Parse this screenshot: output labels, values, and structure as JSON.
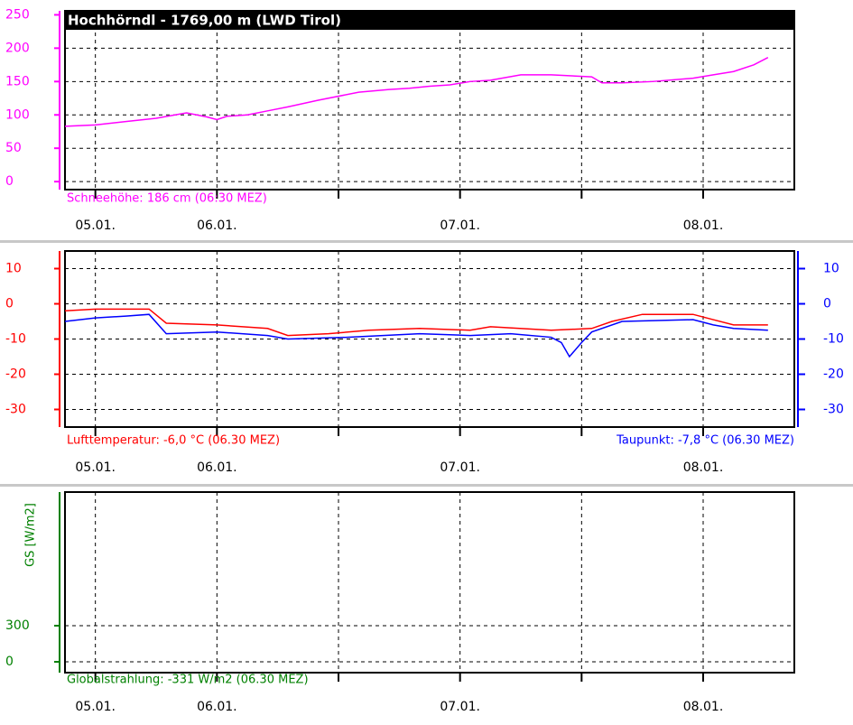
{
  "chart_data": [
    {
      "type": "line",
      "title": "Hochhörndl - 1769,00 m (LWD Tirol)",
      "color": "#ff00ff",
      "xlim": [
        0,
        72
      ],
      "xgrid": [
        3,
        15,
        27,
        39,
        51,
        63
      ],
      "xticks": [
        {
          "value": 3,
          "label": "05.01."
        },
        {
          "value": 15,
          "label": "06.01."
        },
        {
          "value": 39,
          "label": "07.01."
        },
        {
          "value": 63,
          "label": "08.01."
        }
      ],
      "ylim": [
        -12,
        256
      ],
      "yticks": [
        0,
        50,
        100,
        150,
        200,
        250
      ],
      "grid": true,
      "series": [
        {
          "name": "Schneehöhe: 186 cm (06:30 MEZ)",
          "color": "#ff00ff",
          "x": [
            0,
            3,
            6,
            9,
            12,
            14,
            15,
            16,
            18,
            20,
            22,
            25,
            29,
            32,
            34,
            36,
            38,
            40,
            42,
            45,
            48,
            52,
            53,
            55,
            58,
            62,
            64,
            66,
            68,
            69.4
          ],
          "values": [
            83,
            85,
            90,
            95,
            103,
            97,
            93,
            98,
            100,
            106,
            112,
            122,
            134,
            138,
            140,
            143,
            145,
            150,
            152,
            160,
            160,
            157,
            148,
            148,
            150,
            155,
            160,
            165,
            175,
            186
          ]
        }
      ]
    },
    {
      "type": "line",
      "color": "#ff0000",
      "y2color": "#0000ff",
      "xlim": [
        0,
        72
      ],
      "xgrid": [
        3,
        15,
        27,
        39,
        51,
        63
      ],
      "xticks": [
        {
          "value": 3,
          "label": "05.01."
        },
        {
          "value": 15,
          "label": "06.01."
        },
        {
          "value": 39,
          "label": "07.01."
        },
        {
          "value": 63,
          "label": "08.01."
        }
      ],
      "ylim": [
        -35,
        15
      ],
      "yticks": [
        10,
        0,
        -10,
        -20,
        -30
      ],
      "y2lim": [
        -35,
        15
      ],
      "y2ticks": [
        10,
        0,
        -10,
        -20,
        -30
      ],
      "grid": true,
      "series": [
        {
          "name": "Lufttemperatur: -6,0 °C (06.30 MEZ)",
          "color": "#ff0000",
          "x": [
            0,
            3,
            6,
            8.3,
            10,
            15,
            20,
            22,
            26,
            30,
            35,
            40,
            42,
            48,
            52,
            54,
            57,
            62,
            64,
            66,
            69.4
          ],
          "values": [
            -2,
            -1.5,
            -1.5,
            -1.5,
            -5.5,
            -6,
            -7,
            -9,
            -8.5,
            -7.5,
            -7,
            -7.5,
            -6.5,
            -7.5,
            -7,
            -5,
            -3,
            -3,
            -4.5,
            -6,
            -6
          ]
        },
        {
          "name": "Taupunkt: -7,8 °C (06.30 MEZ)",
          "color": "#0000ff",
          "axis": "y2",
          "x": [
            0,
            3,
            6,
            8.3,
            10,
            15,
            20,
            22,
            28,
            35,
            40,
            44,
            48,
            49,
            49.8,
            51,
            52,
            55,
            62,
            64,
            66,
            69.4
          ],
          "values": [
            -5,
            -4,
            -3.5,
            -3,
            -8.5,
            -8,
            -9,
            -10,
            -9.5,
            -8.5,
            -9,
            -8.5,
            -9.5,
            -11,
            -15,
            -11,
            -8,
            -5,
            -4.5,
            -6,
            -7,
            -7.5
          ]
        }
      ]
    },
    {
      "type": "line",
      "color": "#008000",
      "ylabel": "GS [W/m2]",
      "caption": "Globalstrahlung: -331 W/m2 (06.30 MEZ)",
      "xlim": [
        0,
        72
      ],
      "xgrid": [
        3,
        15,
        27,
        39,
        51,
        63
      ],
      "xticks": [
        {
          "value": 3,
          "label": "05.01."
        },
        {
          "value": 15,
          "label": "06.01."
        },
        {
          "value": 39,
          "label": "07.01."
        },
        {
          "value": 63,
          "label": "08.01."
        }
      ],
      "ylim": [
        -90,
        1410
      ],
      "yticks": [
        0,
        300
      ],
      "grid": true,
      "series": []
    }
  ]
}
